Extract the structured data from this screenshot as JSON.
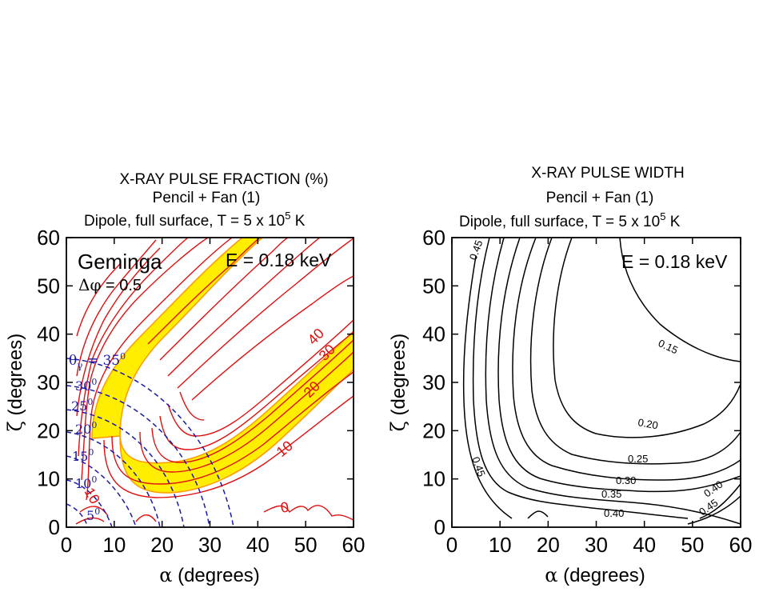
{
  "chart_data": [
    {
      "type": "contour",
      "title_lines": [
        "X-RAY PULSE FRACTION (%)",
        "Pencil + Fan (1)",
        "Dipole, full surface,  T = 5 x 10",
        "5",
        " K"
      ],
      "xlabel_sym": "α",
      "xlabel": " (degrees)",
      "ylabel_sym": "ζ",
      "ylabel": " (degrees)",
      "xlim": [
        0,
        60
      ],
      "ylim": [
        0,
        60
      ],
      "xticks": [
        "0",
        "10",
        "20",
        "30",
        "40",
        "50",
        "60"
      ],
      "yticks": [
        "0",
        "10",
        "20",
        "30",
        "40",
        "50",
        "60"
      ],
      "annotations": {
        "object": "Geminga",
        "energy": "E = 0.18 keV",
        "dphi_sym": "Δφ",
        "dphi_value": " = 0.5"
      },
      "contour_labels": [
        "0",
        "10",
        "20",
        "30",
        "40",
        "10"
      ],
      "theta_labels": [
        {
          "text": "θ",
          "sub": "γ",
          "value": " = 35",
          "deg": "0"
        },
        {
          "text": "30",
          "deg": "0"
        },
        {
          "text": "25",
          "deg": "0"
        },
        {
          "text": "20",
          "deg": "0"
        },
        {
          "text": "15",
          "deg": "0"
        },
        {
          "text": "10",
          "deg": "0"
        },
        {
          "text": "5",
          "deg": "0"
        }
      ],
      "theta_gamma_values": [
        5,
        10,
        15,
        20,
        25,
        30,
        35
      ],
      "shaded_band": "pulse fraction range observed for Geminga",
      "colors": {
        "contours": "#e01010",
        "theta": "#1a1aa8",
        "band": "#ffee00",
        "band_edge": "#ff9900"
      }
    },
    {
      "type": "contour",
      "title_lines": [
        "X-RAY PULSE WIDTH",
        "Pencil + Fan (1)",
        "Dipole, full surface,  T = 5 x 10",
        "5",
        " K"
      ],
      "xlabel_sym": "α",
      "xlabel": " (degrees)",
      "ylabel_sym": "ζ",
      "ylabel": " (degrees)",
      "xlim": [
        0,
        60
      ],
      "ylim": [
        0,
        60
      ],
      "xticks": [
        "0",
        "10",
        "20",
        "30",
        "40",
        "50",
        "60"
      ],
      "yticks": [
        "0",
        "10",
        "20",
        "30",
        "40",
        "50",
        "60"
      ],
      "annotations": {
        "energy": "E = 0.18 keV"
      },
      "contour_labels": [
        "0.45",
        "0.15",
        "0.20",
        "0.25",
        "0.30",
        "0.35",
        "0.40",
        "0.45",
        "0.40",
        "0.45"
      ],
      "colors": {
        "contours": "#000000"
      }
    }
  ]
}
